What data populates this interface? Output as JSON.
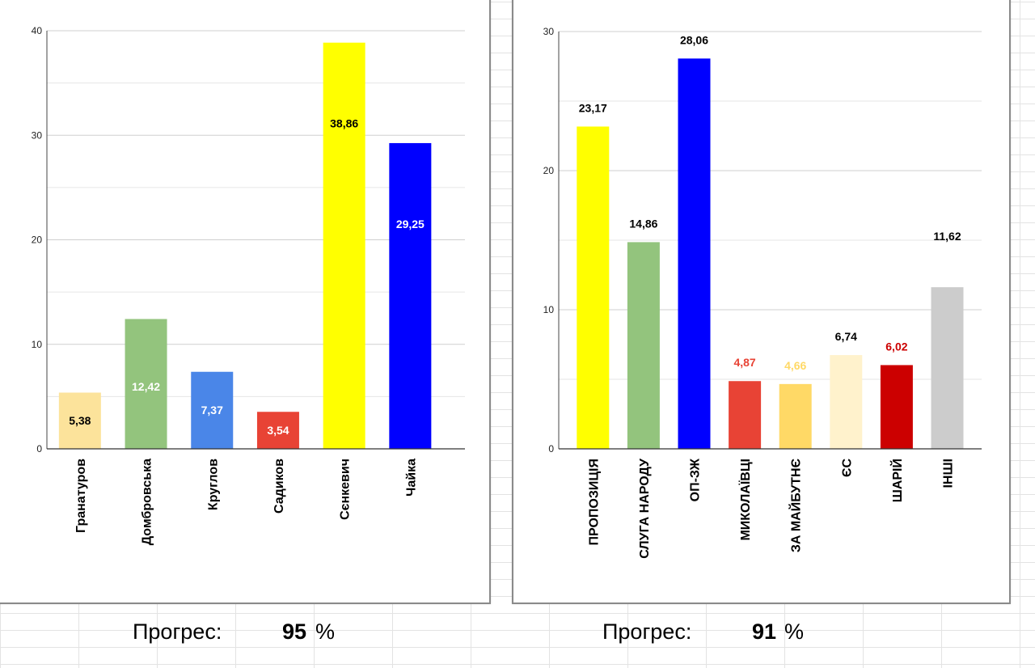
{
  "chart_data": [
    {
      "type": "bar",
      "categories": [
        "Гранатуров",
        "Домбровська",
        "Круглов",
        "Садиков",
        "Сєнкевич",
        "Чайка"
      ],
      "values": [
        5.38,
        12.42,
        7.37,
        3.54,
        38.86,
        29.25
      ],
      "value_labels": [
        "5,38",
        "12,42",
        "7,37",
        "3,54",
        "38,86",
        "29,25"
      ],
      "colors": [
        "#fce39b",
        "#93c47d",
        "#4a86e8",
        "#e84335",
        "#ffff00",
        "#0000ff"
      ],
      "label_colors": [
        "#000000",
        "#ffffff",
        "#ffffff",
        "#ffffff",
        "#000000",
        "#ffffff"
      ],
      "label_position": "inside",
      "ylim": [
        0,
        40
      ],
      "yticks": [
        0,
        10,
        20,
        30,
        40
      ],
      "grid": true,
      "title": "",
      "xlabel": "",
      "ylabel": ""
    },
    {
      "type": "bar",
      "categories": [
        "ПРОПОЗИЦІЯ",
        "СЛУГА НАРОДУ",
        "ОП-ЗЖ",
        "МИКОЛАЇВЦІ",
        "ЗА МАЙБУТНЄ",
        "ЄС",
        "ШАРІЙ",
        "ІНШІ"
      ],
      "values": [
        23.17,
        14.86,
        28.06,
        4.87,
        4.66,
        6.74,
        6.02,
        11.62
      ],
      "value_labels": [
        "23,17",
        "14,86",
        "28,06",
        "4,87",
        "4,66",
        "6,74",
        "6,02",
        "11,62"
      ],
      "colors": [
        "#ffff00",
        "#93c47d",
        "#0000ff",
        "#e84335",
        "#ffd966",
        "#fff2cc",
        "#cc0000",
        "#cccccc"
      ],
      "label_colors": [
        "#000000",
        "#000000",
        "#000000",
        "#e84335",
        "#ffd966",
        "#000000",
        "#cc0000",
        "#000000"
      ],
      "label_position": "above",
      "ylim": [
        0,
        30
      ],
      "yticks": [
        0,
        10,
        20,
        30
      ],
      "grid": true,
      "title": "",
      "xlabel": "",
      "ylabel": ""
    }
  ],
  "progress": [
    {
      "label": "Прогрес:",
      "value": "95",
      "unit": "%",
      "percent": 95
    },
    {
      "label": "Прогрес:",
      "value": "91",
      "unit": "%",
      "percent": 91
    }
  ]
}
